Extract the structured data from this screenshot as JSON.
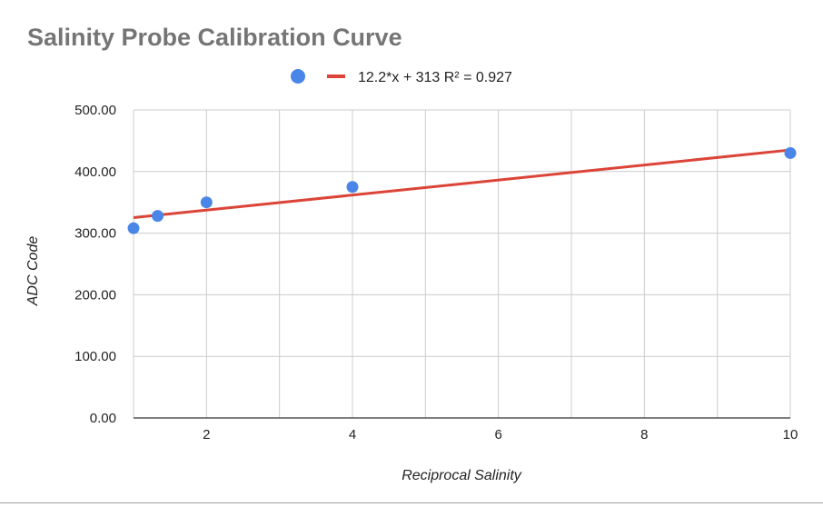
{
  "chart_data": {
    "type": "scatter",
    "title": "Salinity Probe Calibration Curve",
    "xlabel": "Reciprocal Salinity",
    "ylabel": "ADC Code",
    "xlim": [
      1,
      10
    ],
    "ylim": [
      0,
      500
    ],
    "x_ticks": [
      2,
      4,
      6,
      8,
      10
    ],
    "y_ticks": [
      0,
      100,
      200,
      300,
      400,
      500
    ],
    "y_tick_labels": [
      "0.00",
      "100.00",
      "200.00",
      "300.00",
      "400.00",
      "500.00"
    ],
    "x_grid_at": [
      1,
      2,
      3,
      4,
      5,
      6,
      7,
      8,
      9,
      10
    ],
    "grid": true,
    "legend_position": "top",
    "series": [
      {
        "kind": "points",
        "color": "#4a86e8",
        "x": [
          1.0,
          1.33,
          2.0,
          4.0,
          10.0
        ],
        "y": [
          308,
          328,
          350,
          375,
          430
        ]
      },
      {
        "kind": "trendline",
        "name": "12.2*x + 313 R² = 0.927",
        "color": "#db4437",
        "slope": 12.2,
        "intercept": 313
      }
    ]
  }
}
